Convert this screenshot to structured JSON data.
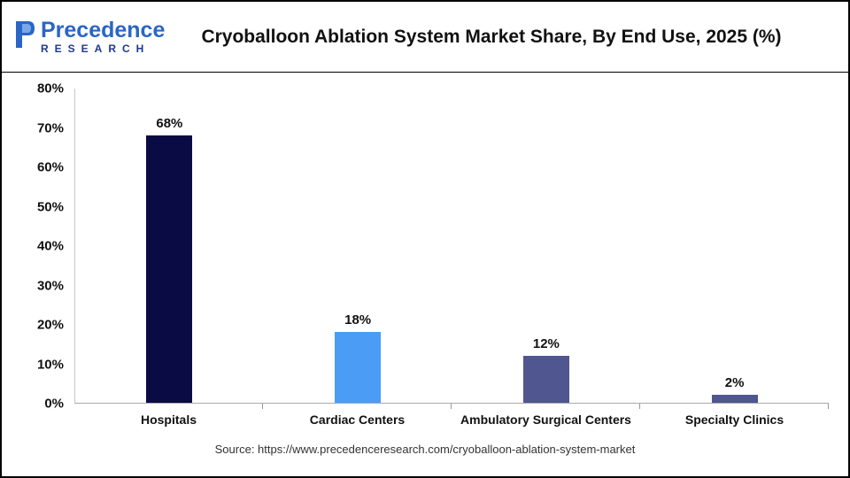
{
  "logo": {
    "line1": "Precedence",
    "line2": "RESEARCH"
  },
  "header": {
    "title": "Cryoballoon Ablation System Market Share, By End Use, 2025 (%)"
  },
  "source": "Source: https://www.precedenceresearch.com/cryoballoon-ablation-system-market",
  "chart_data": {
    "type": "bar",
    "title": "Cryoballoon Ablation System Market Share, By End Use, 2025 (%)",
    "categories": [
      "Hospitals",
      "Cardiac Centers",
      "Ambulatory Surgical Centers",
      "Specialty Clinics"
    ],
    "values": [
      68,
      18,
      12,
      2
    ],
    "value_labels": [
      "68%",
      "18%",
      "12%",
      "2%"
    ],
    "xlabel": "",
    "ylabel": "",
    "ylim": [
      0,
      80
    ],
    "ytick_labels": [
      "0%",
      "10%",
      "20%",
      "30%",
      "40%",
      "50%",
      "60%",
      "70%",
      "80%"
    ],
    "bar_colors": [
      "#0a0b45",
      "#4a9cf4",
      "#4f5690",
      "#4f5690"
    ],
    "grid": false,
    "legend": "none"
  }
}
